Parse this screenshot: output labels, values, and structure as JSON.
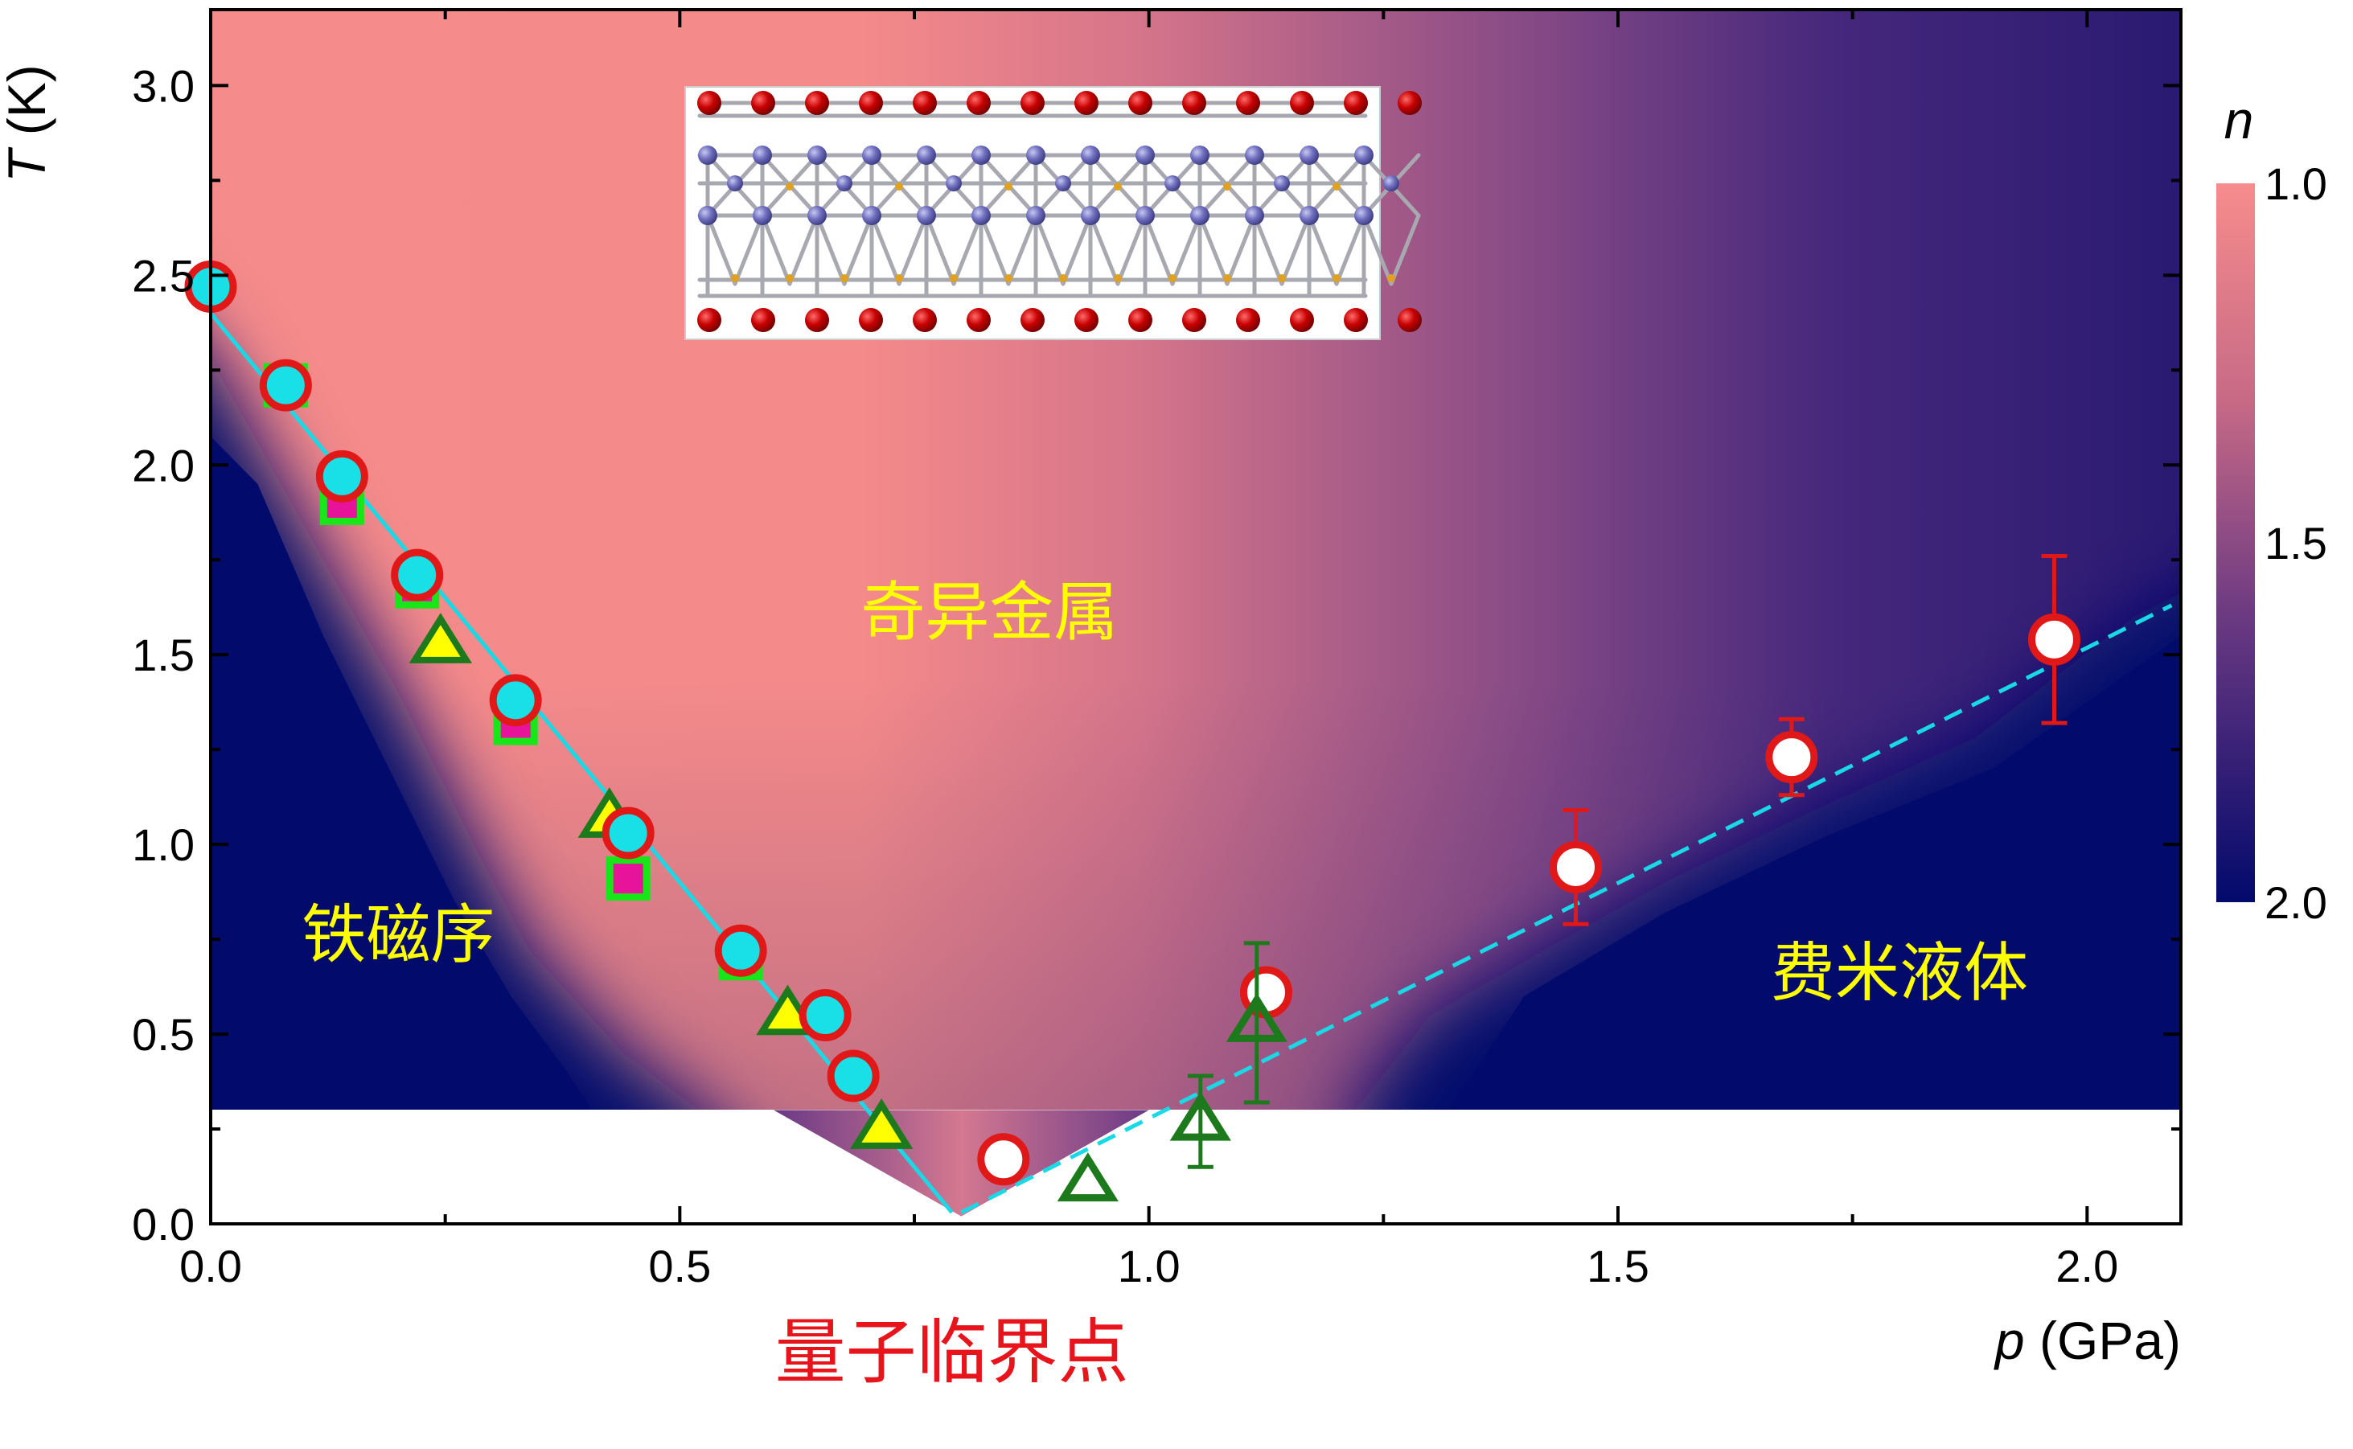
{
  "colors": {
    "nearly_one": "#f68c8c",
    "two": "#020a6c",
    "fit_line": "#19d9e6",
    "circle_edge": "#e01818",
    "triangle_green": "#1c7a1c"
  },
  "chart_data": {
    "type": "scatter",
    "xlabel": {
      "symbol": "p",
      "unit": " (GPa)"
    },
    "ylabel": {
      "symbol": "T",
      "unit": " (K)"
    },
    "xlim": [
      0,
      2.1
    ],
    "ylim": [
      0,
      3.2
    ],
    "x_ticks": [
      "0.0",
      "0.5",
      "1.0",
      "1.5",
      "2.0"
    ],
    "x_tick_values": [
      0,
      0.5,
      1.0,
      1.5,
      2.0
    ],
    "y_ticks": [
      "0.0",
      "0.5",
      "1.0",
      "1.5",
      "2.0",
      "2.5",
      "3.0"
    ],
    "y_tick_values": [
      0,
      0.5,
      1.0,
      1.5,
      2.0,
      2.5,
      3.0
    ],
    "grid": false,
    "data_floor_T": 0.3,
    "colorbar": {
      "label": "n",
      "ticks": [
        "1.0",
        "1.5",
        "2.0"
      ],
      "tick_values": [
        1.0,
        1.5,
        2.0
      ]
    },
    "regions": [
      {
        "text": "奇异金属",
        "p": 0.83,
        "T": 1.6
      },
      {
        "text": "铁磁序",
        "p": 0.2,
        "T": 0.75
      },
      {
        "text": "费米液体",
        "p": 1.8,
        "T": 0.65
      }
    ],
    "qcp_label": "量子临界点",
    "inset": "crystal structure",
    "fit_lines": [
      {
        "style": "solid",
        "points": [
          [
            0,
            2.4
          ],
          [
            0.79,
            0.03
          ]
        ]
      },
      {
        "style": "dashed",
        "points": [
          [
            0.8,
            0.03
          ],
          [
            2.09,
            1.63
          ]
        ]
      }
    ],
    "series": [
      {
        "marker": "square",
        "fill": "#e8139b",
        "edge": "#19e619",
        "points": [
          [
            0.08,
            2.21
          ],
          [
            0.14,
            1.9
          ],
          [
            0.22,
            1.68
          ],
          [
            0.325,
            1.32
          ],
          [
            0.445,
            0.91
          ],
          [
            0.565,
            0.7
          ]
        ]
      },
      {
        "marker": "triangle",
        "fill": "#ffff00",
        "edge": "#1c7a1c",
        "points": [
          [
            0.245,
            1.53
          ],
          [
            0.425,
            1.07
          ],
          [
            0.615,
            0.55
          ],
          [
            0.715,
            0.25
          ]
        ]
      },
      {
        "marker": "circle",
        "fill": "#19e0e6",
        "edge": "#e01818",
        "points": [
          [
            0.0,
            2.47
          ],
          [
            0.08,
            2.21
          ],
          [
            0.14,
            1.97
          ],
          [
            0.22,
            1.71
          ],
          [
            0.325,
            1.38
          ],
          [
            0.445,
            1.03
          ],
          [
            0.565,
            0.72
          ],
          [
            0.655,
            0.55
          ],
          [
            0.685,
            0.39
          ]
        ]
      },
      {
        "marker": "circle",
        "fill": "#ffffff",
        "edge": "#e01818",
        "points": [
          {
            "p": 0.845,
            "T": 0.17
          },
          {
            "p": 1.125,
            "T": 0.61
          },
          {
            "p": 1.455,
            "T": 0.94,
            "err": 0.15
          },
          {
            "p": 1.685,
            "T": 1.23,
            "err": 0.1
          },
          {
            "p": 1.965,
            "T": 1.54,
            "err": 0.22
          }
        ]
      },
      {
        "marker": "triangle-open",
        "fill": "#ffffff",
        "edge": "#1c7a1c",
        "points": [
          {
            "p": 0.935,
            "T": 0.11
          },
          {
            "p": 1.055,
            "T": 0.27,
            "err": 0.12
          },
          {
            "p": 1.115,
            "T": 0.53,
            "err": 0.21
          }
        ]
      }
    ]
  }
}
